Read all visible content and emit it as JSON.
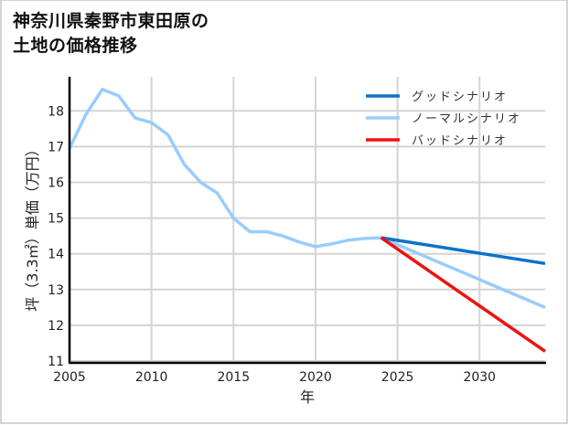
{
  "title_line1": "神奈川県秦野市東田原の",
  "title_line2": "土地の価格推移",
  "colors": {
    "good": "#0a72c8",
    "normal": "#99ccff",
    "bad": "#ee1111",
    "grid": "#d4d4d4",
    "axis": "#000000"
  },
  "chart_data": {
    "type": "line",
    "title": "神奈川県秦野市東田原の土地の価格推移",
    "xlabel": "年",
    "ylabel": "坪（3.3㎡）単価（万円）",
    "xlim": [
      2005,
      2034
    ],
    "ylim": [
      11,
      19
    ],
    "xticks": [
      2005,
      2010,
      2015,
      2020,
      2025,
      2030
    ],
    "yticks": [
      11,
      12,
      13,
      14,
      15,
      16,
      17,
      18
    ],
    "grid": true,
    "legend_position": "upper right",
    "series": [
      {
        "name": "グッドシナリオ",
        "color": "#0a72c8",
        "x": [
          2024,
          2034
        ],
        "values": [
          14.45,
          13.73
        ]
      },
      {
        "name": "ノーマルシナリオ",
        "color": "#99ccff",
        "x": [
          2005,
          2006,
          2007,
          2008,
          2009,
          2010,
          2011,
          2012,
          2013,
          2014,
          2015,
          2016,
          2017,
          2018,
          2019,
          2020,
          2021,
          2022,
          2023,
          2024,
          2034
        ],
        "values": [
          16.95,
          17.9,
          18.6,
          18.42,
          17.8,
          17.67,
          17.33,
          16.5,
          16.0,
          15.7,
          15.0,
          14.62,
          14.62,
          14.5,
          14.33,
          14.2,
          14.28,
          14.38,
          14.43,
          14.45,
          12.5
        ]
      },
      {
        "name": "バッドシナリオ",
        "color": "#ee1111",
        "x": [
          2024,
          2034
        ],
        "values": [
          14.45,
          11.27
        ]
      }
    ]
  },
  "axis": {
    "xlabel": "年",
    "ylabel": "坪（3.3㎡）単価（万円）",
    "xtick_labels": [
      "2005",
      "2010",
      "2015",
      "2020",
      "2025",
      "2030"
    ],
    "ytick_labels": [
      "11",
      "12",
      "13",
      "14",
      "15",
      "16",
      "17",
      "18"
    ]
  },
  "legend": [
    {
      "label": "グッドシナリオ"
    },
    {
      "label": "ノーマルシナリオ"
    },
    {
      "label": "バッドシナリオ"
    }
  ]
}
